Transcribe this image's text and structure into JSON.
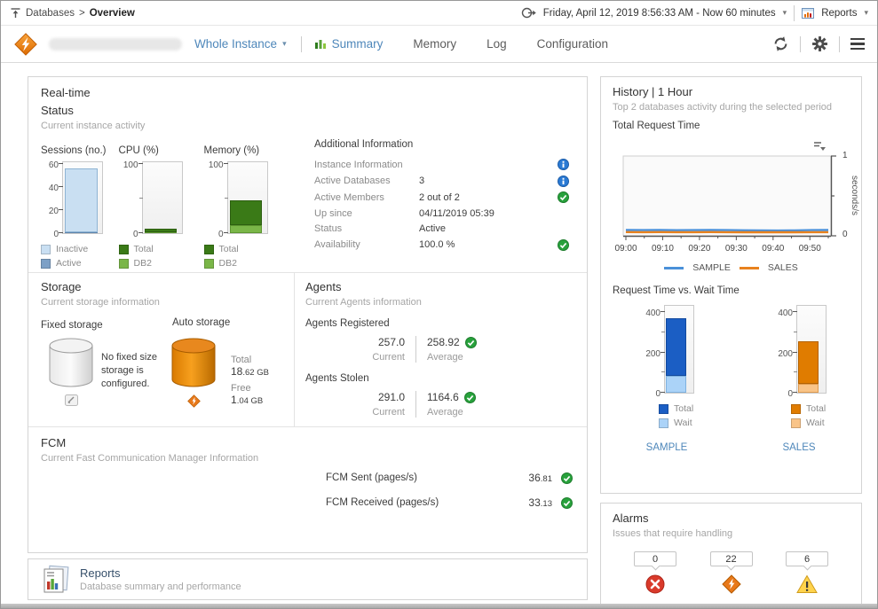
{
  "topbar": {
    "breadcrumb": {
      "items": [
        "Databases",
        "Overview"
      ],
      "separator": ">"
    },
    "time_range": "Friday, April 12, 2019 8:56:33 AM - Now 60 minutes",
    "reports_label": "Reports"
  },
  "header": {
    "scope": "Whole Instance",
    "tabs": [
      "Summary",
      "Memory",
      "Log",
      "Configuration"
    ]
  },
  "realtime": {
    "title": "Real-time",
    "subtitle": "Status",
    "description": "Current instance activity",
    "additional": {
      "title": "Additional Information",
      "rows": [
        {
          "label": "Instance Information",
          "value": "",
          "icon": "info"
        },
        {
          "label": "Active Databases",
          "value": "3",
          "icon": "info"
        },
        {
          "label": "Active Members",
          "value": "2 out of 2",
          "icon": "check"
        },
        {
          "label": "Up since",
          "value": "04/11/2019 05:39",
          "icon": ""
        },
        {
          "label": "Status",
          "value": "Active",
          "icon": ""
        },
        {
          "label": "Availability",
          "value": "100.0 %",
          "icon": "check"
        }
      ]
    }
  },
  "storage": {
    "title": "Storage",
    "description": "Current storage information",
    "fixed": {
      "label": "Fixed storage",
      "message": "No fixed size storage is configured."
    },
    "auto": {
      "label": "Auto storage",
      "total_label": "Total",
      "total_value": "18.62 GB",
      "free_label": "Free",
      "free_value": "1.04 GB"
    }
  },
  "agents": {
    "title": "Agents",
    "description": "Current Agents information",
    "registered": {
      "label": "Agents Registered",
      "current": "257.0",
      "current_label": "Current",
      "average": "258.92",
      "average_label": "Average"
    },
    "stolen": {
      "label": "Agents Stolen",
      "current": "291.0",
      "current_label": "Current",
      "average": "1164.6",
      "average_label": "Average"
    }
  },
  "fcm": {
    "title": "FCM",
    "description": "Current Fast Communication Manager Information",
    "rows": [
      {
        "label": "FCM Sent (pages/s)",
        "value": "36.81"
      },
      {
        "label": "FCM Received (pages/s)",
        "value": "33.13"
      }
    ]
  },
  "reports_panel": {
    "title": "Reports",
    "subtitle": "Database summary and performance"
  },
  "history": {
    "title": "History | 1 Hour",
    "subtitle": "Top 2 databases activity during the selected period",
    "chart_label": "Total Request Time",
    "vs_label": "Request Time vs. Wait Time",
    "db_links": [
      "SAMPLE",
      "SALES"
    ]
  },
  "alarms": {
    "title": "Alarms",
    "subtitle": "Issues that require handling",
    "items": [
      {
        "count": "0",
        "severity": "fatal"
      },
      {
        "count": "22",
        "severity": "critical"
      },
      {
        "count": "6",
        "severity": "warning"
      }
    ]
  },
  "chart_data": {
    "status_charts": [
      {
        "type": "bar",
        "title": "Sessions (no.)",
        "ymax": 63,
        "ticks": [
          {
            "v": 0,
            "label": "0"
          },
          {
            "v": 20,
            "label": "20"
          },
          {
            "v": 40,
            "label": "40"
          },
          {
            "v": 60,
            "label": "60"
          }
        ],
        "series": [
          {
            "name": "Active",
            "value": 0.5,
            "color": "#7da0c6",
            "border": "#5d84ad"
          },
          {
            "name": "Inactive",
            "value": 56,
            "color": "#c9dff2",
            "border": "#8fb4d4"
          }
        ]
      },
      {
        "type": "bar",
        "title": "CPU (%)",
        "ymax": 105,
        "ticks": [
          {
            "v": 0,
            "label": "0"
          },
          {
            "v": 50,
            "label": ""
          },
          {
            "v": 100,
            "label": "100"
          }
        ],
        "series": [
          {
            "name": "DB2",
            "value": 1.5,
            "color": "#7ab648",
            "border": "#5c9630"
          },
          {
            "name": "Total",
            "value": 7,
            "color": "#3a7a17",
            "border": "#2c5e10"
          }
        ]
      },
      {
        "type": "bar",
        "title": "Memory (%)",
        "ymax": 105,
        "ticks": [
          {
            "v": 0,
            "label": "0"
          },
          {
            "v": 50,
            "label": ""
          },
          {
            "v": 100,
            "label": "100"
          }
        ],
        "series": [
          {
            "name": "DB2",
            "value": 12,
            "color": "#7ab648",
            "border": "#5c9630"
          },
          {
            "name": "Total",
            "value": 48,
            "color": "#3a7a17",
            "border": "#2c5e10"
          }
        ]
      }
    ],
    "total_request_time": {
      "type": "line",
      "ylabel": "seconds/s",
      "ylim": [
        0,
        1
      ],
      "x_ticks": [
        "09:00",
        "09:10",
        "09:20",
        "09:30",
        "09:40",
        "09:50"
      ],
      "series": [
        {
          "name": "SAMPLE",
          "color": "#4a90d9",
          "values": [
            0.072,
            0.071,
            0.072,
            0.07,
            0.071,
            0.072,
            0.071,
            0.069,
            0.067,
            0.066,
            0.068,
            0.071,
            0.072
          ]
        },
        {
          "name": "SALES",
          "color": "#e8821e",
          "values": [
            0.047,
            0.046,
            0.047,
            0.046,
            0.046,
            0.047,
            0.046,
            0.045,
            0.044,
            0.044,
            0.045,
            0.046,
            0.046
          ]
        }
      ]
    },
    "request_vs_wait": [
      {
        "type": "stacked-bar",
        "db": "SAMPLE",
        "ymax": 440,
        "ticks": [
          {
            "v": 0,
            "label": "0"
          },
          {
            "v": 100,
            "label": ""
          },
          {
            "v": 200,
            "label": "200"
          },
          {
            "v": 300,
            "label": ""
          },
          {
            "v": 400,
            "label": "400"
          }
        ],
        "series": [
          {
            "name": "Wait",
            "value": 85,
            "color": "#abd3f8",
            "border": "#7fb2e0"
          },
          {
            "name": "Total",
            "value": 370,
            "color": "#1b5ec4",
            "border": "#134a9e"
          }
        ]
      },
      {
        "type": "stacked-bar",
        "db": "SALES",
        "ymax": 440,
        "ticks": [
          {
            "v": 0,
            "label": "0"
          },
          {
            "v": 100,
            "label": ""
          },
          {
            "v": 200,
            "label": "200"
          },
          {
            "v": 300,
            "label": ""
          },
          {
            "v": 400,
            "label": "400"
          }
        ],
        "series": [
          {
            "name": "Wait",
            "value": 45,
            "color": "#f9c488",
            "border": "#e09b4e"
          },
          {
            "name": "Total",
            "value": 255,
            "color": "#e07c00",
            "border": "#b36200"
          }
        ]
      }
    ]
  }
}
